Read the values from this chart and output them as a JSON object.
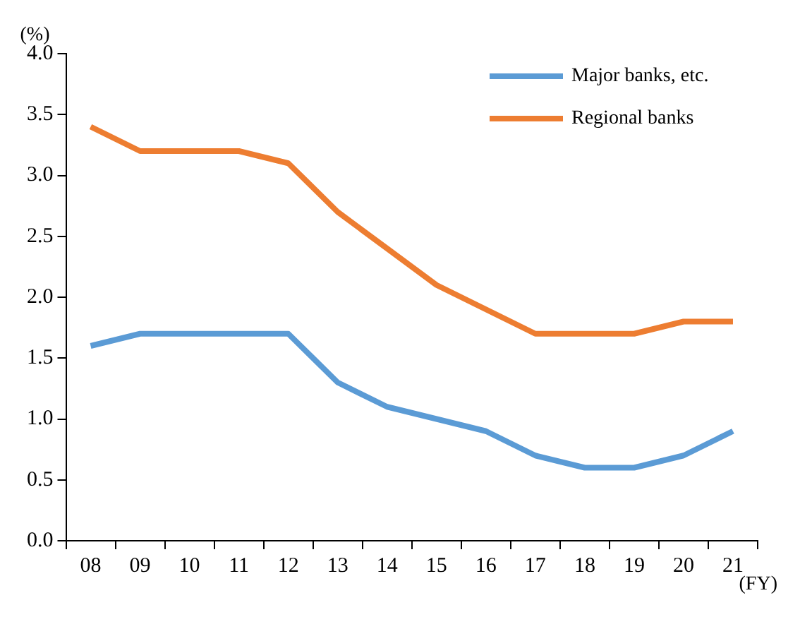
{
  "chart_data": {
    "type": "line",
    "ylabel": "(%)",
    "xlabel": "(FY)",
    "categories": [
      "08",
      "09",
      "10",
      "11",
      "12",
      "13",
      "14",
      "15",
      "16",
      "17",
      "18",
      "19",
      "20",
      "21"
    ],
    "series": [
      {
        "name": "Major banks, etc.",
        "color": "#5b9bd5",
        "values": [
          1.6,
          1.7,
          1.7,
          1.7,
          1.7,
          1.3,
          1.1,
          1.0,
          0.9,
          0.7,
          0.6,
          0.6,
          0.7,
          0.9
        ]
      },
      {
        "name": "Regional banks",
        "color": "#ed7d31",
        "values": [
          3.4,
          3.2,
          3.2,
          3.2,
          3.1,
          2.7,
          2.4,
          2.1,
          1.9,
          1.7,
          1.7,
          1.7,
          1.8,
          1.8
        ]
      }
    ],
    "ylim": [
      0,
      4
    ],
    "yticks": [
      {
        "value": 0,
        "label": "0.0"
      },
      {
        "value": 0.5,
        "label": "0.5"
      },
      {
        "value": 1,
        "label": "1.0"
      },
      {
        "value": 1.5,
        "label": "1.5"
      },
      {
        "value": 2,
        "label": "2.0"
      },
      {
        "value": 2.5,
        "label": "2.5"
      },
      {
        "value": 3,
        "label": "3.0"
      },
      {
        "value": 3.5,
        "label": "3.5"
      },
      {
        "value": 4,
        "label": "4.0"
      }
    ],
    "grid": false,
    "legend": "top right",
    "marker": "none",
    "line_style": "solid"
  }
}
